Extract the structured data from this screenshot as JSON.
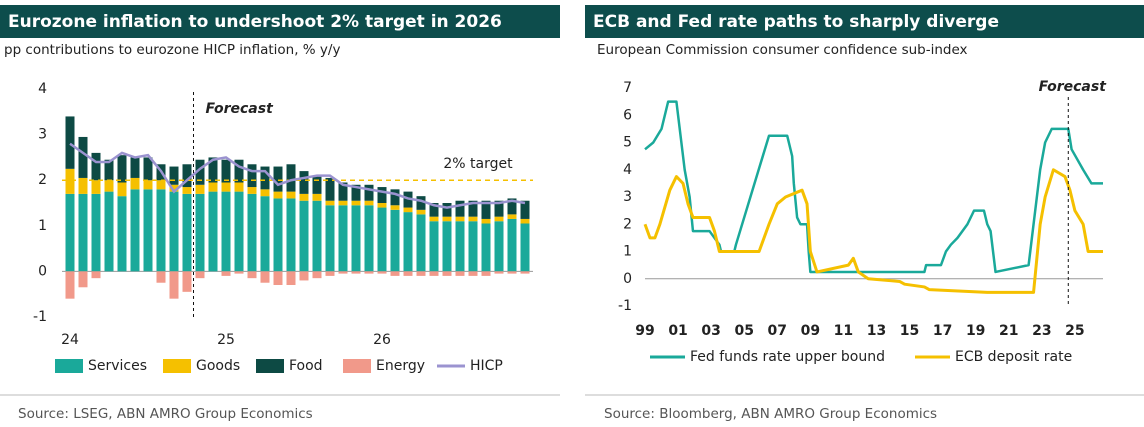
{
  "chart_data": [
    {
      "type": "bar",
      "stacked": true,
      "title": "Eurozone inflation to undershoot 2% target in 2026",
      "subtitle": "pp contributions to eurozone HICP inflation, % y/y",
      "source": "Source: LSEG, ABN AMRO Group Economics",
      "categories": [
        "24",
        null,
        null,
        null,
        null,
        null,
        null,
        null,
        null,
        null,
        null,
        null,
        "25",
        null,
        null,
        null,
        null,
        null,
        null,
        null,
        null,
        null,
        null,
        null,
        "26",
        null,
        null,
        null,
        null,
        null,
        null,
        null,
        null,
        null,
        null,
        null
      ],
      "series": [
        {
          "name": "Services",
          "color": "#1aa99a",
          "values": [
            1.7,
            1.7,
            1.7,
            1.75,
            1.65,
            1.8,
            1.8,
            1.8,
            1.75,
            1.7,
            1.7,
            1.75,
            1.75,
            1.75,
            1.7,
            1.65,
            1.6,
            1.6,
            1.55,
            1.55,
            1.45,
            1.45,
            1.45,
            1.45,
            1.4,
            1.35,
            1.3,
            1.25,
            1.1,
            1.1,
            1.1,
            1.1,
            1.05,
            1.1,
            1.15,
            1.05
          ]
        },
        {
          "name": "Goods",
          "color": "#f5c000",
          "values": [
            0.55,
            0.35,
            0.3,
            0.25,
            0.3,
            0.25,
            0.2,
            0.2,
            0.15,
            0.15,
            0.2,
            0.2,
            0.2,
            0.2,
            0.15,
            0.15,
            0.15,
            0.15,
            0.15,
            0.15,
            0.1,
            0.1,
            0.1,
            0.1,
            0.1,
            0.1,
            0.1,
            0.1,
            0.1,
            0.1,
            0.1,
            0.1,
            0.1,
            0.1,
            0.1,
            0.1
          ]
        },
        {
          "name": "Food",
          "color": "#0d4a44",
          "values": [
            1.15,
            0.9,
            0.6,
            0.45,
            0.6,
            0.45,
            0.5,
            0.35,
            0.4,
            0.5,
            0.55,
            0.55,
            0.5,
            0.5,
            0.5,
            0.5,
            0.55,
            0.6,
            0.5,
            0.4,
            0.5,
            0.4,
            0.35,
            0.35,
            0.35,
            0.35,
            0.35,
            0.3,
            0.3,
            0.3,
            0.35,
            0.35,
            0.4,
            0.35,
            0.35,
            0.4
          ]
        },
        {
          "name": "Energy",
          "color": "#f1998a",
          "values": [
            -0.6,
            -0.35,
            -0.15,
            0,
            0,
            0,
            0,
            -0.25,
            -0.6,
            -0.45,
            -0.15,
            0,
            -0.1,
            -0.05,
            -0.15,
            -0.25,
            -0.3,
            -0.3,
            -0.2,
            -0.15,
            -0.1,
            -0.05,
            -0.05,
            -0.05,
            -0.05,
            -0.1,
            -0.1,
            -0.1,
            -0.1,
            -0.1,
            -0.1,
            -0.1,
            -0.1,
            -0.05,
            -0.05,
            -0.05
          ]
        },
        {
          "name": "HICP",
          "color": "#9b93d0",
          "type": "line",
          "values": [
            2.8,
            2.6,
            2.4,
            2.4,
            2.6,
            2.5,
            2.55,
            2.2,
            1.75,
            2.0,
            2.25,
            2.45,
            2.5,
            2.3,
            2.2,
            2.2,
            1.9,
            2.0,
            2.05,
            2.1,
            2.1,
            1.9,
            1.85,
            1.8,
            1.75,
            1.7,
            1.6,
            1.55,
            1.45,
            1.4,
            1.45,
            1.5,
            1.5,
            1.5,
            1.55,
            1.5
          ]
        }
      ],
      "ylim": [
        -1.2,
        4.2
      ],
      "yticks": [
        -1,
        0,
        1,
        2,
        3,
        4
      ],
      "grid": false,
      "target": {
        "value": 2,
        "label": "2% target"
      },
      "forecast": {
        "label": "Forecast",
        "x": 9.5
      }
    },
    {
      "type": "line",
      "title": "ECB and Fed rate paths to sharply diverge",
      "subtitle": "European Commission consumer confidence sub-index",
      "source": "Source: Bloomberg, ABN AMRO Group Economics",
      "series": [
        {
          "name": "Fed funds rate upper bound",
          "color": "#1aa99a",
          "x": [
            1999.0,
            1999.5,
            2000.0,
            2000.4,
            2000.9,
            2001.1,
            2001.4,
            2001.7,
            2001.9,
            2002.9,
            2003.5,
            2003.6,
            2004.4,
            2004.5,
            2006.5,
            2007.6,
            2007.9,
            2008.0,
            2008.2,
            2008.4,
            2008.8,
            2008.9,
            2009.0,
            2015.9,
            2016.0,
            2016.9,
            2017.2,
            2017.5,
            2017.9,
            2018.5,
            2018.9,
            2019.5,
            2019.7,
            2019.9,
            2020.2,
            2022.2,
            2022.6,
            2022.9,
            2023.2,
            2023.6,
            2024.6,
            2024.8,
            2025.5,
            2026.0,
            2026.7
          ],
          "values": [
            4.75,
            5.0,
            5.5,
            6.5,
            6.5,
            5.5,
            4.0,
            3.0,
            1.75,
            1.75,
            1.25,
            1.0,
            1.0,
            1.25,
            5.25,
            5.25,
            4.5,
            3.5,
            2.25,
            2.0,
            2.0,
            1.0,
            0.25,
            0.25,
            0.5,
            0.5,
            1.0,
            1.25,
            1.5,
            2.0,
            2.5,
            2.5,
            2.0,
            1.75,
            0.25,
            0.5,
            2.5,
            4.0,
            5.0,
            5.5,
            5.5,
            4.75,
            4.0,
            3.5,
            3.5
          ]
        },
        {
          "name": "ECB deposit rate",
          "color": "#f5c000",
          "x": [
            1999.0,
            1999.3,
            1999.6,
            1999.9,
            2000.5,
            2000.9,
            2001.3,
            2001.6,
            2001.9,
            2002.9,
            2003.2,
            2003.5,
            2005.9,
            2006.5,
            2007.0,
            2007.5,
            2008.5,
            2008.8,
            2009.0,
            2009.4,
            2011.3,
            2011.6,
            2011.9,
            2012.5,
            2014.4,
            2014.7,
            2015.9,
            2016.2,
            2019.7,
            2022.5,
            2022.7,
            2022.9,
            2023.2,
            2023.7,
            2024.4,
            2024.7,
            2025.0,
            2025.5,
            2025.8,
            2026.7
          ],
          "values": [
            2.0,
            1.5,
            1.5,
            2.0,
            3.25,
            3.75,
            3.5,
            2.75,
            2.25,
            2.25,
            1.75,
            1.0,
            1.0,
            2.0,
            2.75,
            3.0,
            3.25,
            2.75,
            1.0,
            0.25,
            0.5,
            0.75,
            0.25,
            0.0,
            -0.1,
            -0.2,
            -0.3,
            -0.4,
            -0.5,
            -0.5,
            0.75,
            2.0,
            3.0,
            4.0,
            3.75,
            3.25,
            2.5,
            2.0,
            1.0,
            1.0
          ]
        }
      ],
      "xlim": [
        1999,
        2026.7
      ],
      "xticks": [
        {
          "value": 1999,
          "label": "99"
        },
        {
          "value": 2001,
          "label": "01"
        },
        {
          "value": 2003,
          "label": "03"
        },
        {
          "value": 2005,
          "label": "05"
        },
        {
          "value": 2007,
          "label": "07"
        },
        {
          "value": 2009,
          "label": "09"
        },
        {
          "value": 2011,
          "label": "11"
        },
        {
          "value": 2013,
          "label": "13"
        },
        {
          "value": 2015,
          "label": "15"
        },
        {
          "value": 2017,
          "label": "17"
        },
        {
          "value": 2019,
          "label": "19"
        },
        {
          "value": 2021,
          "label": "21"
        },
        {
          "value": 2023,
          "label": "23"
        },
        {
          "value": 2025,
          "label": "25"
        }
      ],
      "ylim": [
        -1,
        7
      ],
      "yticks": [
        -1,
        0,
        1,
        2,
        3,
        4,
        5,
        6,
        7
      ],
      "grid": false,
      "forecast": {
        "label": "Forecast",
        "x": 2024.6
      }
    }
  ]
}
